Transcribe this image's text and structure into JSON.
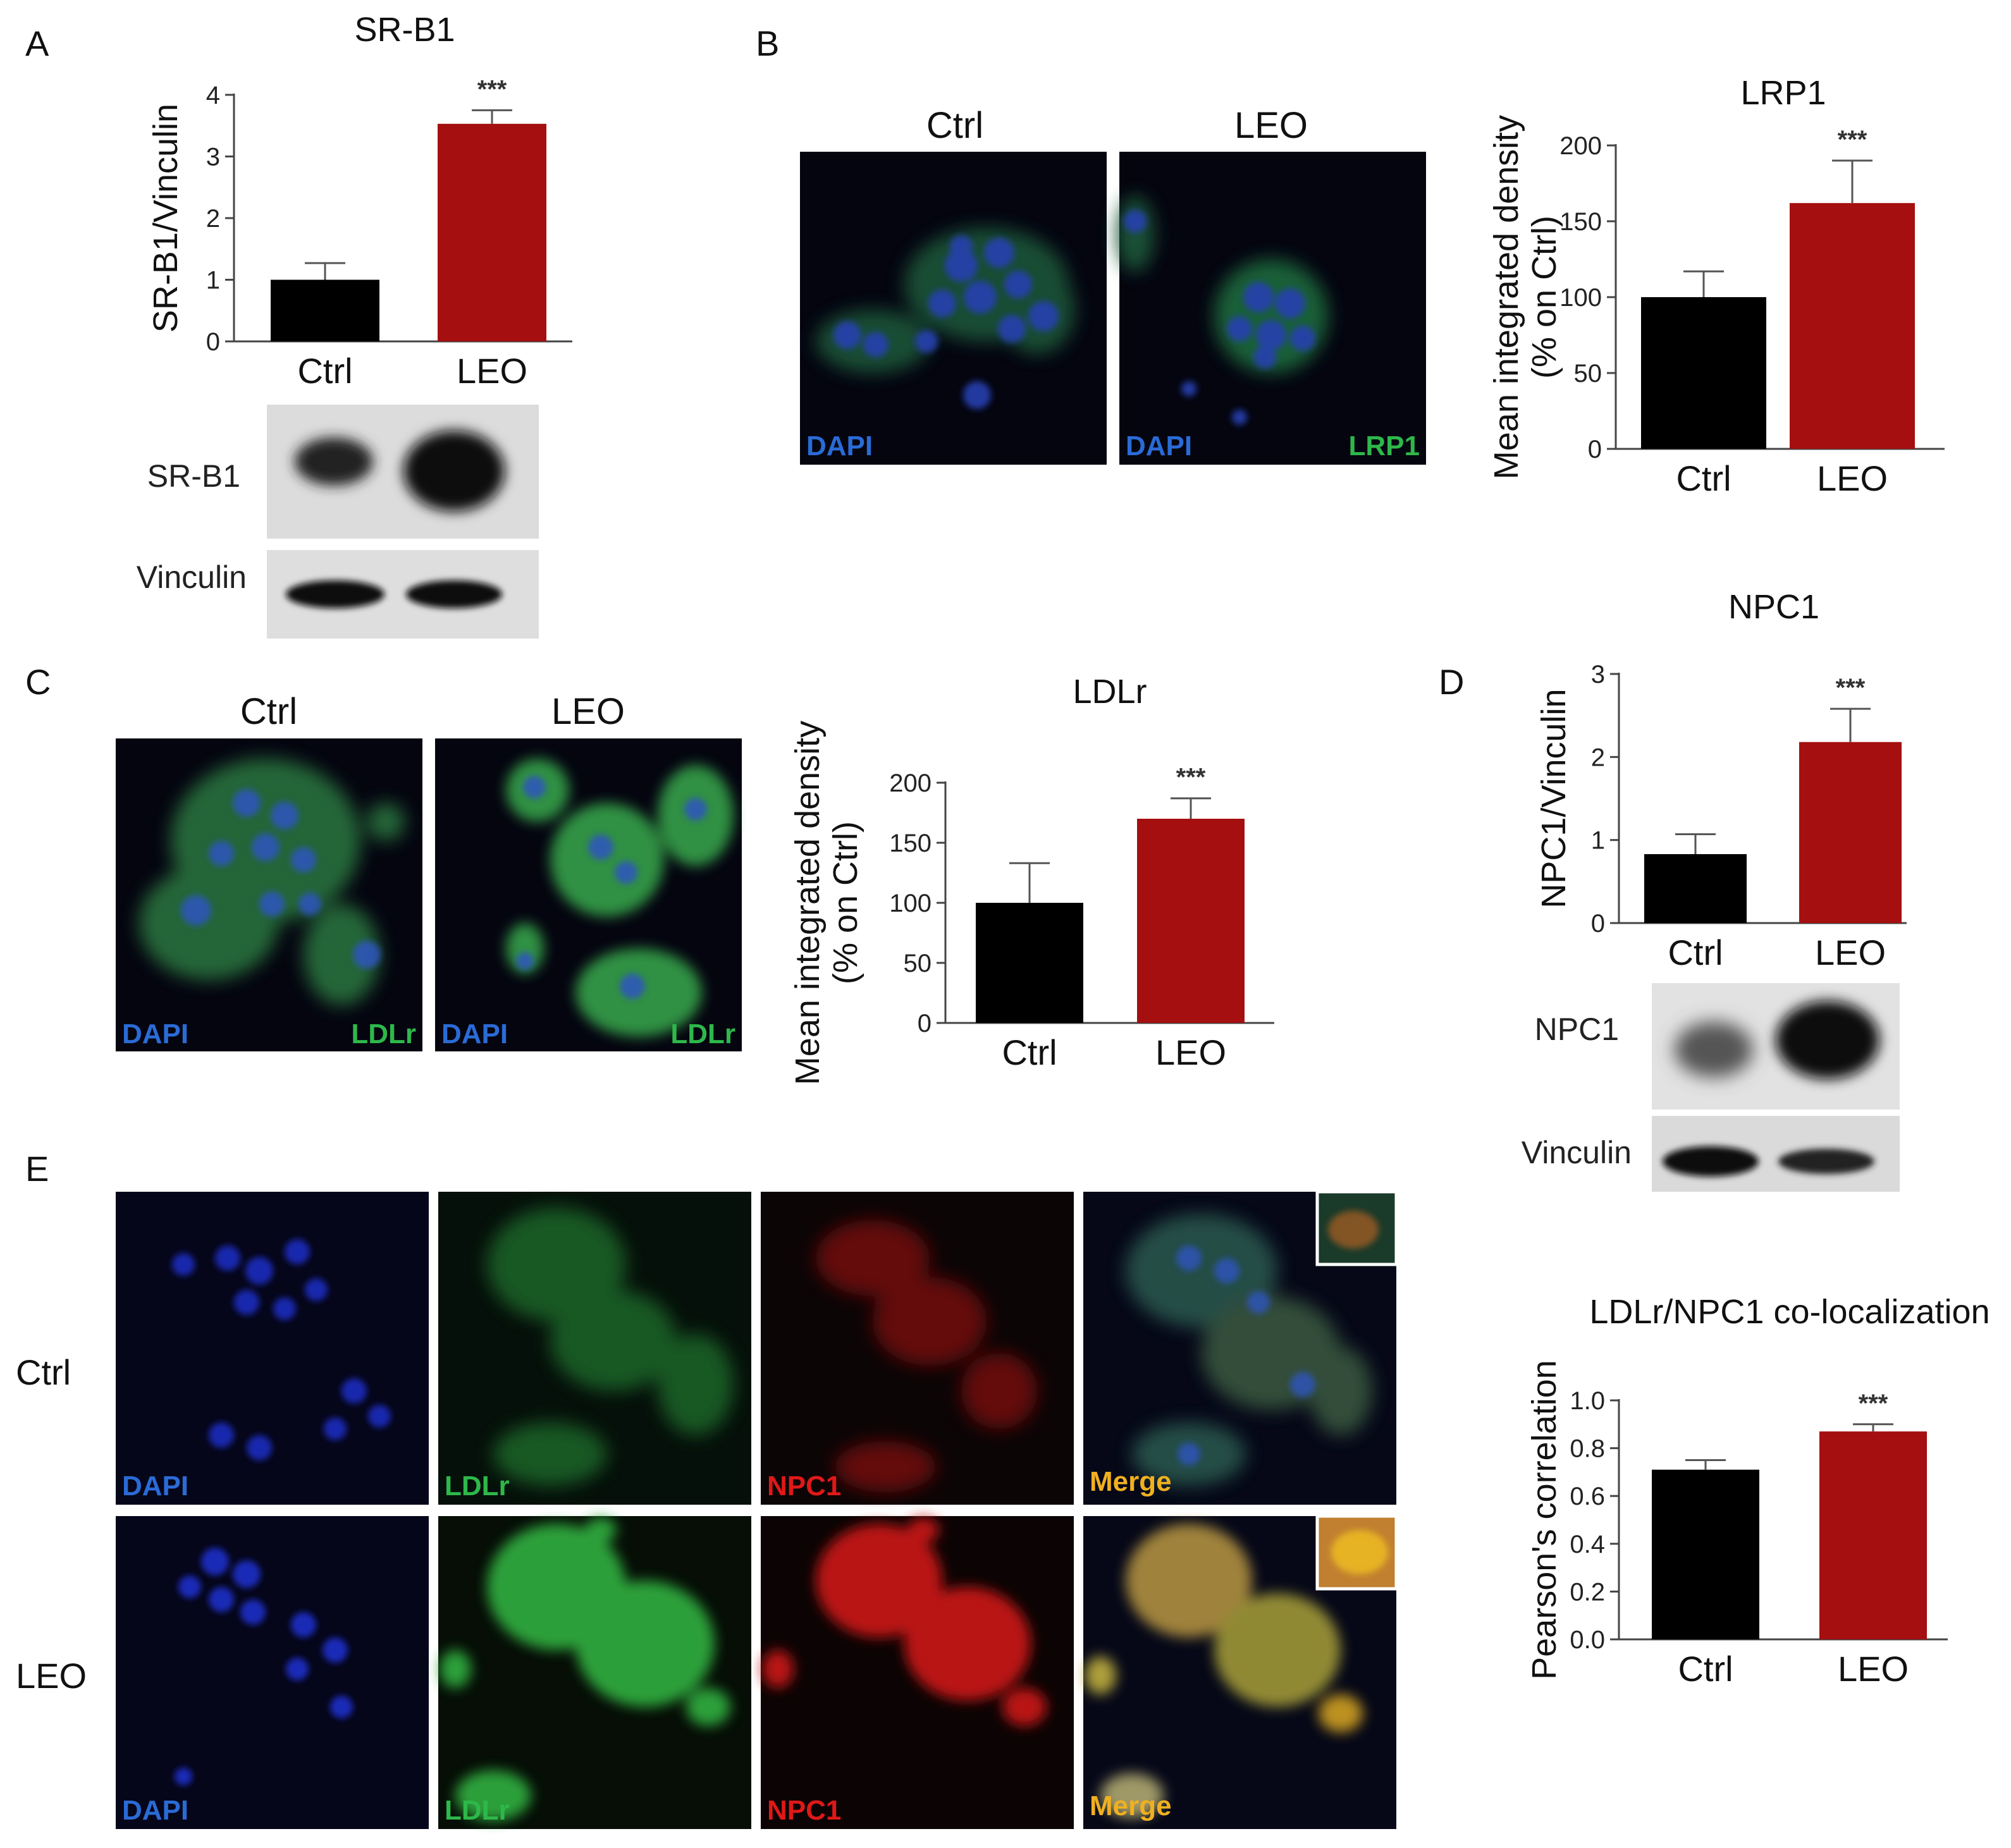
{
  "panels": {
    "A": {
      "letter": "A"
    },
    "B": {
      "letter": "B",
      "col_labels": [
        "Ctrl",
        "LEO"
      ],
      "channels": [
        "DAPI",
        "DAPI",
        "LRP1"
      ]
    },
    "C": {
      "letter": "C",
      "col_labels": [
        "Ctrl",
        "LEO"
      ],
      "channels": [
        "DAPI",
        "LDLr",
        "DAPI",
        "LDLr"
      ]
    },
    "D": {
      "letter": "D"
    },
    "E": {
      "letter": "E",
      "row_labels": [
        "Ctrl",
        "LEO"
      ],
      "channels": [
        "DAPI",
        "LDLr",
        "NPC1",
        "Merge"
      ]
    }
  },
  "blots": {
    "A": {
      "bands": [
        "SR-B1",
        "Vinculin"
      ]
    },
    "D": {
      "bands": [
        "NPC1",
        "Vinculin"
      ]
    }
  },
  "colors": {
    "ctrl_bar": "#000000",
    "leo_bar": "#a50f0f",
    "dapi": "#2a6bd6",
    "green": "#2eb84a",
    "red": "#e01818",
    "merge": "#f0b020"
  },
  "chart_data": [
    {
      "id": "A",
      "type": "bar",
      "title": "SR-B1",
      "ylabel": "SR-B1/Vinculin",
      "categories": [
        "Ctrl",
        "LEO"
      ],
      "values": [
        1.0,
        3.53
      ],
      "errors": [
        0.27,
        0.22
      ],
      "significance": [
        "",
        "***"
      ],
      "ylim": [
        0,
        4
      ],
      "yticks": [
        0,
        1,
        2,
        3,
        4
      ],
      "grid": false,
      "legend": "none"
    },
    {
      "id": "B",
      "type": "bar",
      "title": "LRP1",
      "ylabel": "Mean integrated density (% on Ctrl)",
      "categories": [
        "Ctrl",
        "LEO"
      ],
      "values": [
        100,
        162
      ],
      "errors": [
        17,
        28
      ],
      "significance": [
        "",
        "***"
      ],
      "ylim": [
        0,
        200
      ],
      "yticks": [
        0,
        50,
        100,
        150,
        200
      ],
      "grid": false,
      "legend": "none"
    },
    {
      "id": "C",
      "type": "bar",
      "title": "LDLr",
      "ylabel": "Mean integrated density (% on Ctrl)",
      "categories": [
        "Ctrl",
        "LEO"
      ],
      "values": [
        100,
        170
      ],
      "errors": [
        33,
        17
      ],
      "significance": [
        "",
        "***"
      ],
      "ylim": [
        0,
        200
      ],
      "yticks": [
        0,
        50,
        100,
        150,
        200
      ],
      "grid": false,
      "legend": "none"
    },
    {
      "id": "D",
      "type": "bar",
      "title": "NPC1",
      "ylabel": "NPC1/Vinculin",
      "categories": [
        "Ctrl",
        "LEO"
      ],
      "values": [
        0.83,
        2.18
      ],
      "errors": [
        0.24,
        0.4
      ],
      "significance": [
        "",
        "***"
      ],
      "ylim": [
        0,
        3
      ],
      "yticks": [
        0,
        1,
        2,
        3
      ],
      "grid": false,
      "legend": "none"
    },
    {
      "id": "E",
      "type": "bar",
      "title": "LDLr/NPC1 co-localization",
      "ylabel": "Pearson's correlation",
      "categories": [
        "Ctrl",
        "LEO"
      ],
      "values": [
        0.71,
        0.87
      ],
      "errors": [
        0.04,
        0.03
      ],
      "significance": [
        "",
        "***"
      ],
      "ylim": [
        0,
        1.0
      ],
      "yticks": [
        "0.0",
        "0.2",
        "0.4",
        "0.6",
        "0.8",
        "1.0"
      ],
      "grid": false,
      "legend": "none"
    }
  ]
}
